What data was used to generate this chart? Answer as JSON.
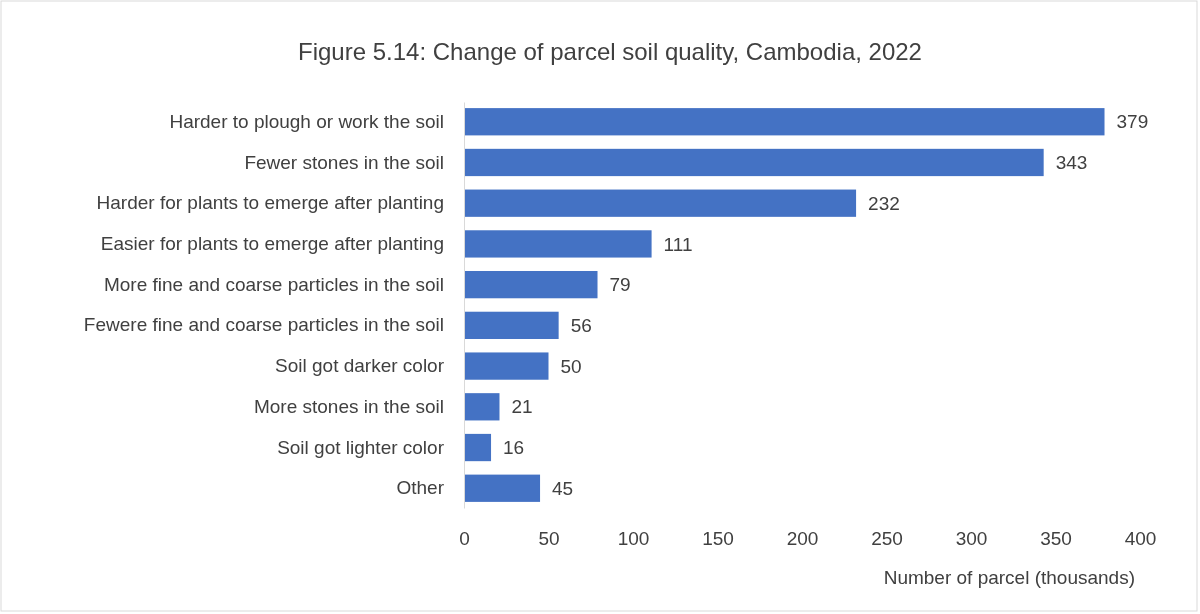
{
  "chart_data": {
    "type": "bar",
    "orientation": "horizontal",
    "title": "Figure 5.14: Change of parcel soil quality, Cambodia, 2022",
    "categories": [
      "Harder to plough or work the soil",
      "Fewer stones in the soil",
      "Harder for plants to emerge after planting",
      "Easier for plants to emerge after planting",
      "More fine and coarse particles in the soil",
      "Fewere fine and coarse particles in the soil",
      "Soil got darker color",
      "More stones in the soil",
      "Soil got lighter color",
      "Other"
    ],
    "values": [
      379,
      343,
      232,
      111,
      79,
      56,
      50,
      21,
      16,
      45
    ],
    "color": "#4472c4",
    "data_labels": true,
    "xlim": [
      0,
      400
    ],
    "xticks": [
      0,
      50,
      100,
      150,
      200,
      250,
      300,
      350,
      400
    ],
    "xlabel": "Number of parcel (thousands)",
    "grid": false
  }
}
